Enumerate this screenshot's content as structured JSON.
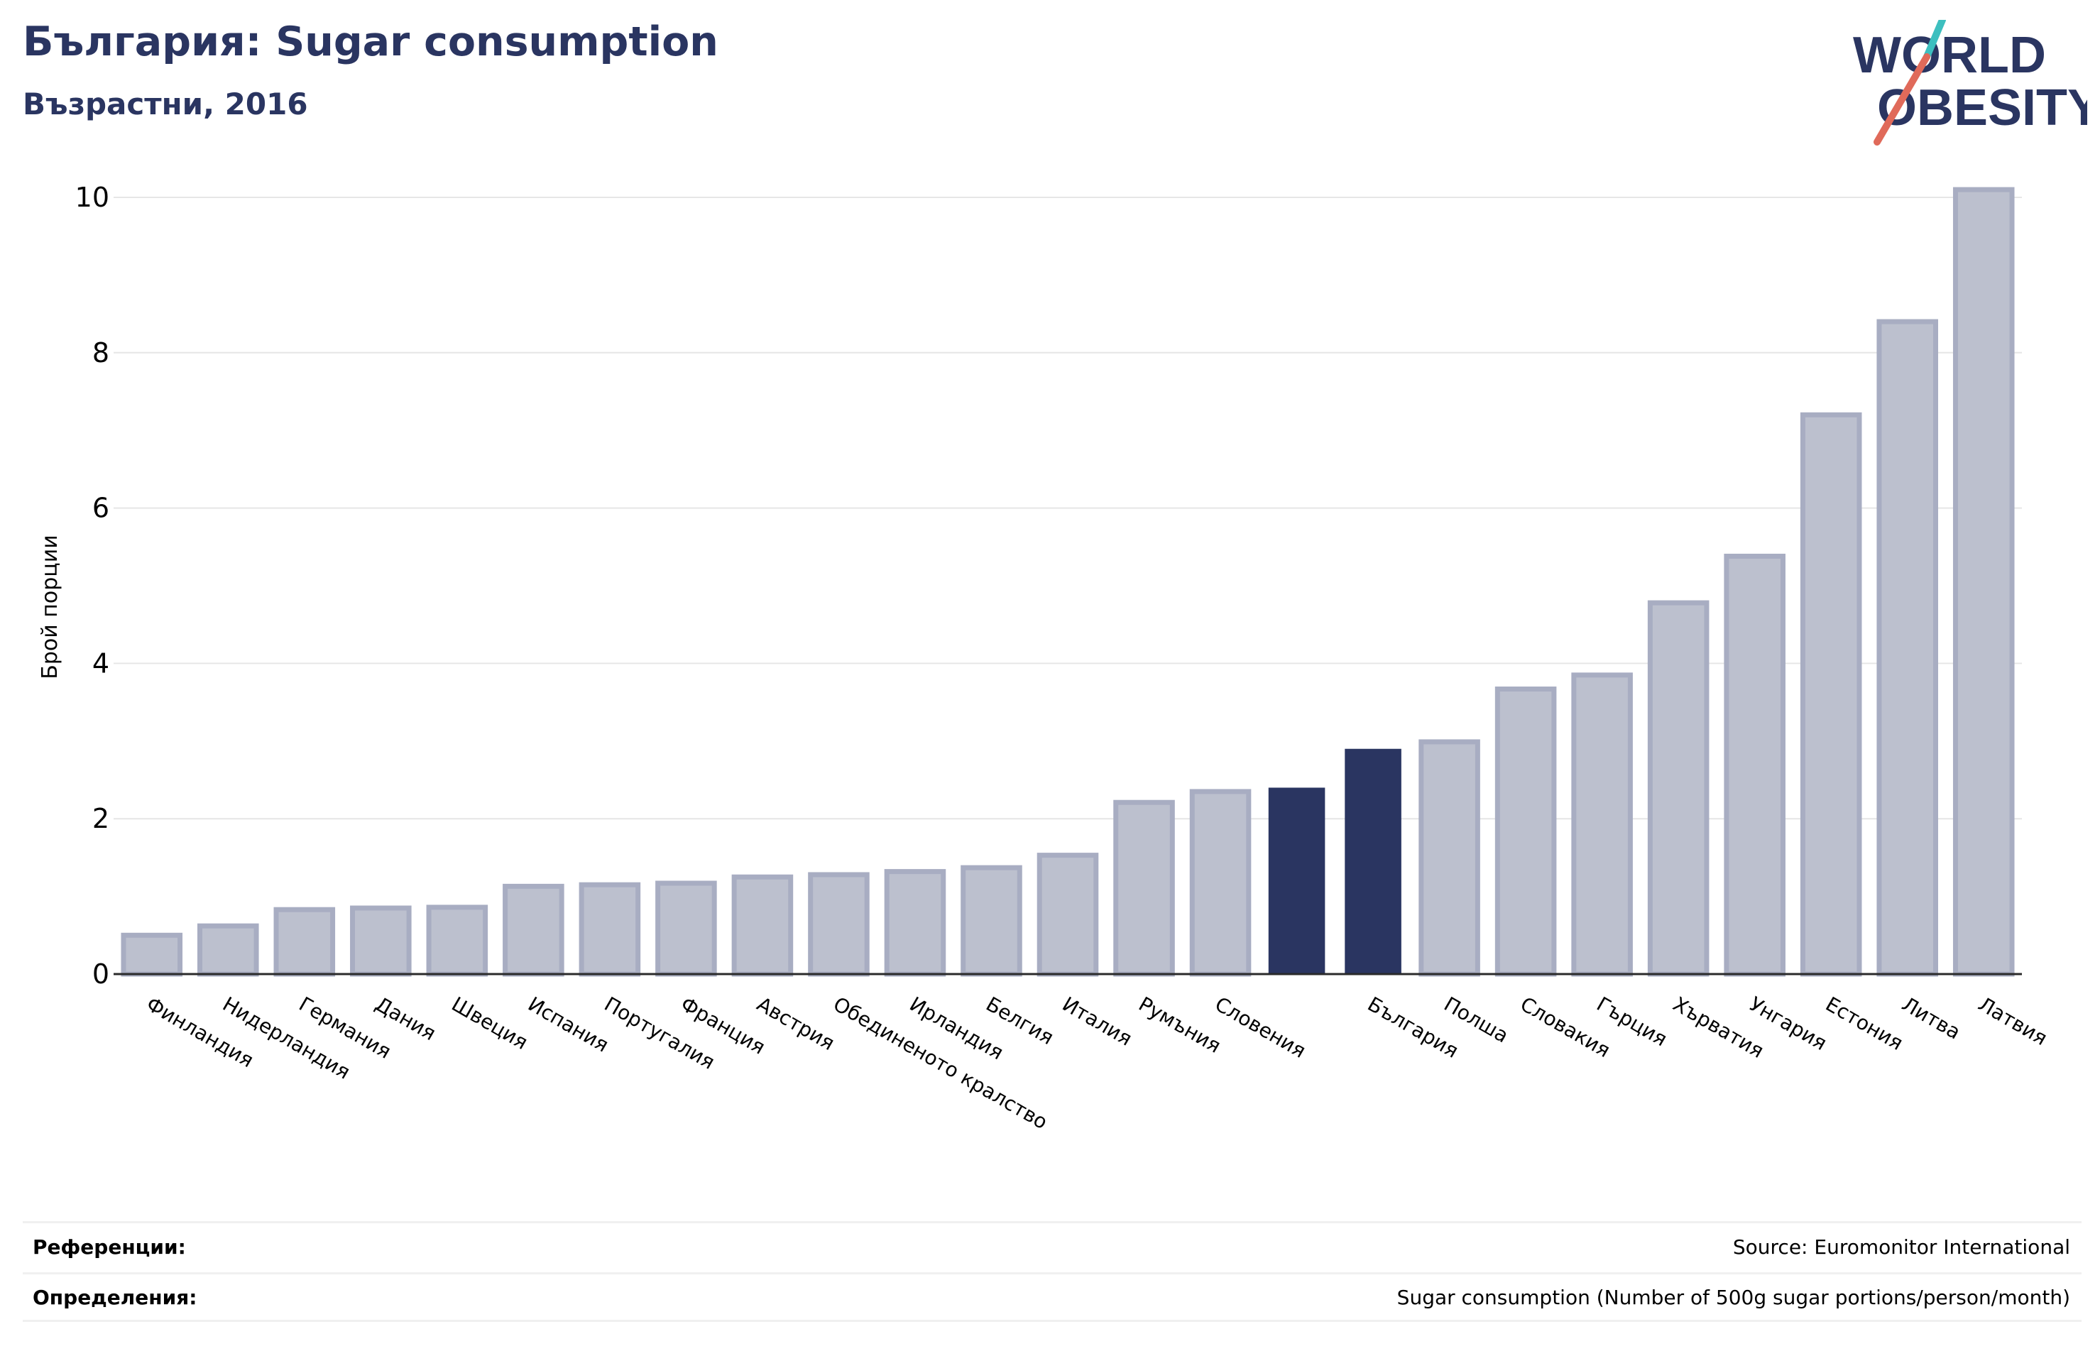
{
  "header": {
    "title": "България: Sugar consumption",
    "subtitle": "Възрастни, 2016"
  },
  "logo": {
    "line1": "WORLD",
    "line2": "OBESITY",
    "text_color": "#2a3561",
    "slash_top_color": "#3dbfbf",
    "slash_bottom_color": "#e06a5a"
  },
  "colors": {
    "bar_default": "#bcc0ce",
    "bar_default_border": "#a8adc2",
    "bar_highlight": "#2a3561"
  },
  "chart_data": {
    "type": "bar",
    "title": "България: Sugar consumption",
    "subtitle": "Възрастни, 2016",
    "ylabel": "Брой порции",
    "xlabel": "",
    "ylim": [
      0,
      10.3
    ],
    "yticks": [
      0,
      2,
      4,
      6,
      8,
      10
    ],
    "grid": true,
    "legend": "none",
    "categories": [
      "Финландия",
      "Нидерландия",
      "Германия",
      "Дания",
      "Швеция",
      "Испания",
      "Португалия",
      "Франция",
      "Австрия",
      "Обединеното кралство",
      "Ирландия",
      "Белгия",
      "Италия",
      "Румъния",
      "Словения",
      "",
      "България",
      "Полша",
      "Словакия",
      "Гърция",
      "Хърватия",
      "Унгария",
      "Естония",
      "Литва",
      "Латвия"
    ],
    "values": [
      0.5,
      0.62,
      0.83,
      0.85,
      0.86,
      1.13,
      1.15,
      1.17,
      1.25,
      1.28,
      1.32,
      1.37,
      1.53,
      2.21,
      2.35,
      2.4,
      2.9,
      2.99,
      3.67,
      3.85,
      4.78,
      5.38,
      7.2,
      8.4,
      10.1
    ],
    "highlight": [
      false,
      false,
      false,
      false,
      false,
      false,
      false,
      false,
      false,
      false,
      false,
      false,
      false,
      false,
      false,
      true,
      true,
      false,
      false,
      false,
      false,
      false,
      false,
      false,
      false
    ]
  },
  "footer": {
    "references_label": "Референции:",
    "references_value": "Source: Euromonitor International",
    "definitions_label": "Определения:",
    "definitions_value": "Sugar consumption (Number of 500g sugar portions/person/month)"
  }
}
